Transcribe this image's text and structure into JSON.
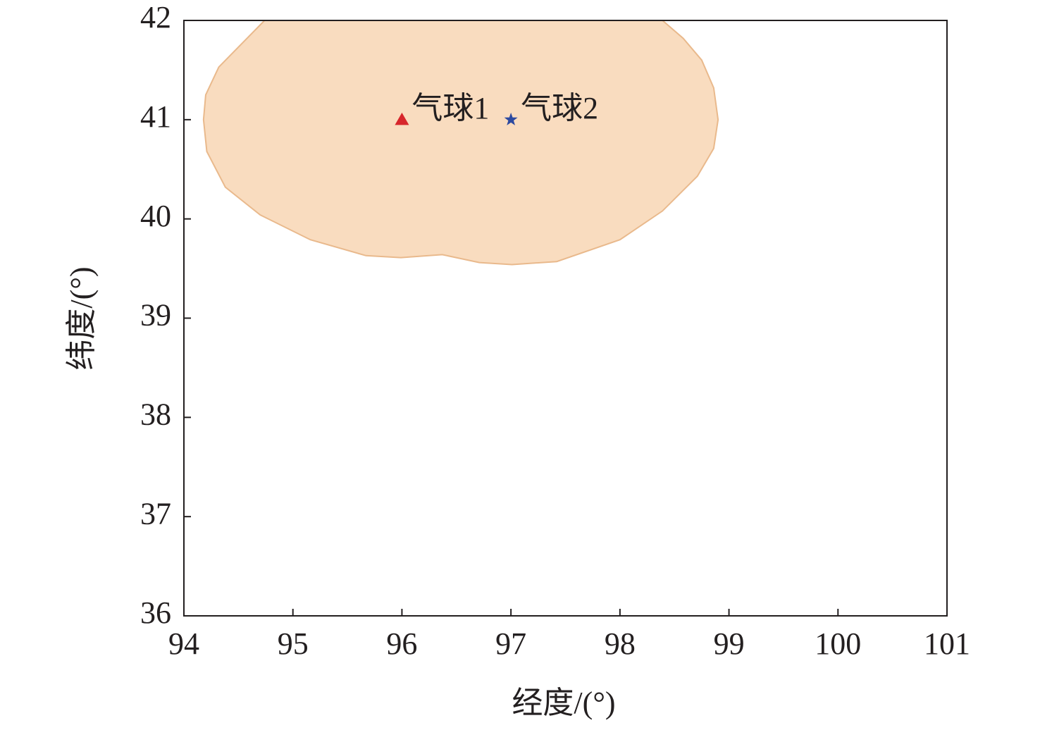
{
  "chart_data": {
    "type": "scatter",
    "xlabel": "经度/(°)",
    "ylabel": "纬度/(°)",
    "xlim": [
      94,
      101
    ],
    "ylim": [
      36,
      42
    ],
    "xticks": [
      94,
      95,
      96,
      97,
      98,
      99,
      100,
      101
    ],
    "yticks": [
      36,
      37,
      38,
      39,
      40,
      41,
      42
    ],
    "region": {
      "color": "#f9dcbf",
      "edge_color": "#e9b98c",
      "x": [
        94.74,
        94.32,
        94.2,
        94.18,
        94.21,
        94.38,
        94.7,
        95.16,
        95.67,
        95.99,
        96.37,
        96.71,
        97.01,
        97.42,
        98.0,
        98.39,
        98.71,
        98.86,
        98.9,
        98.86,
        98.75,
        98.58,
        98.39
      ],
      "y": [
        42.0,
        41.53,
        41.25,
        41.0,
        40.68,
        40.32,
        40.04,
        39.79,
        39.63,
        39.61,
        39.64,
        39.56,
        39.54,
        39.57,
        39.79,
        40.08,
        40.43,
        40.71,
        41.0,
        41.32,
        41.6,
        41.82,
        42.0
      ]
    },
    "series": [
      {
        "name": "气球1",
        "color": "#d7262b",
        "marker": "triangle",
        "x": [
          96
        ],
        "values": [
          41
        ]
      },
      {
        "name": "气球2",
        "color": "#2d4aa0",
        "marker": "star",
        "x": [
          97
        ],
        "values": [
          41
        ]
      }
    ]
  }
}
